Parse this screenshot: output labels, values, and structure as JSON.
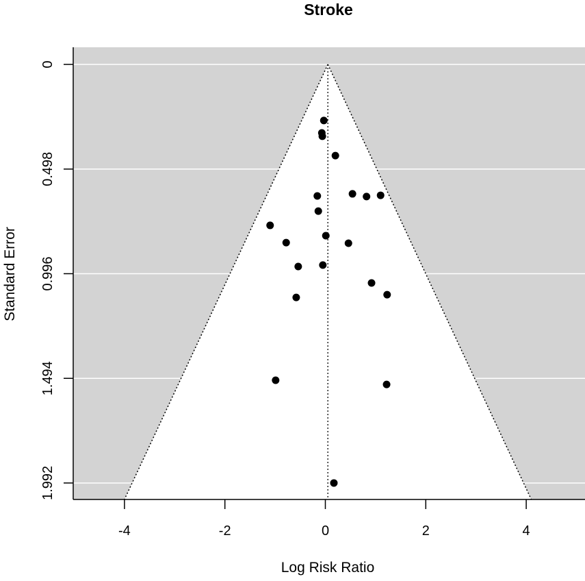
{
  "chart_data": {
    "type": "scatter",
    "subtype": "funnel",
    "title": "Stroke",
    "xlabel": "Log Risk Ratio",
    "ylabel": "Standard Error",
    "xlim": [
      -5.0,
      5.0
    ],
    "ylim": [
      1.992,
      0
    ],
    "y_reversed": true,
    "x_ticks": [
      -4,
      -2,
      0,
      2,
      4
    ],
    "x_tick_labels": [
      "-4",
      "-2",
      "0",
      "2",
      "4"
    ],
    "y_ticks": [
      0,
      0.498,
      0.996,
      1.494,
      1.992
    ],
    "y_tick_labels": [
      "0",
      "0.498",
      "0.996",
      "1.494",
      "1.992"
    ],
    "grid": "horizontal white lines at y ticks",
    "background_color": "#d3d3d3",
    "funnel_color": "#ffffff",
    "point_color": "#000000",
    "pooled_estimate": 0.05,
    "funnel": {
      "apex": [
        0.05,
        0
      ],
      "base_left": -4.0,
      "base_right": 4.1,
      "base_se": 2.07
    },
    "points": [
      {
        "x": -0.03,
        "y": 0.267
      },
      {
        "x": -0.07,
        "y": 0.326
      },
      {
        "x": -0.06,
        "y": 0.342
      },
      {
        "x": 0.2,
        "y": 0.434
      },
      {
        "x": -0.16,
        "y": 0.626
      },
      {
        "x": 0.54,
        "y": 0.616
      },
      {
        "x": 0.82,
        "y": 0.629
      },
      {
        "x": 1.1,
        "y": 0.623
      },
      {
        "x": -0.14,
        "y": 0.698
      },
      {
        "x": -1.1,
        "y": 0.766
      },
      {
        "x": 0.01,
        "y": 0.815
      },
      {
        "x": -0.78,
        "y": 0.848
      },
      {
        "x": 0.46,
        "y": 0.851
      },
      {
        "x": -0.54,
        "y": 0.962
      },
      {
        "x": -0.05,
        "y": 0.955
      },
      {
        "x": 0.92,
        "y": 1.04
      },
      {
        "x": 1.23,
        "y": 1.096
      },
      {
        "x": -0.58,
        "y": 1.109
      },
      {
        "x": -0.99,
        "y": 1.503
      },
      {
        "x": 1.22,
        "y": 1.523
      },
      {
        "x": 0.17,
        "y": 1.992
      }
    ]
  }
}
